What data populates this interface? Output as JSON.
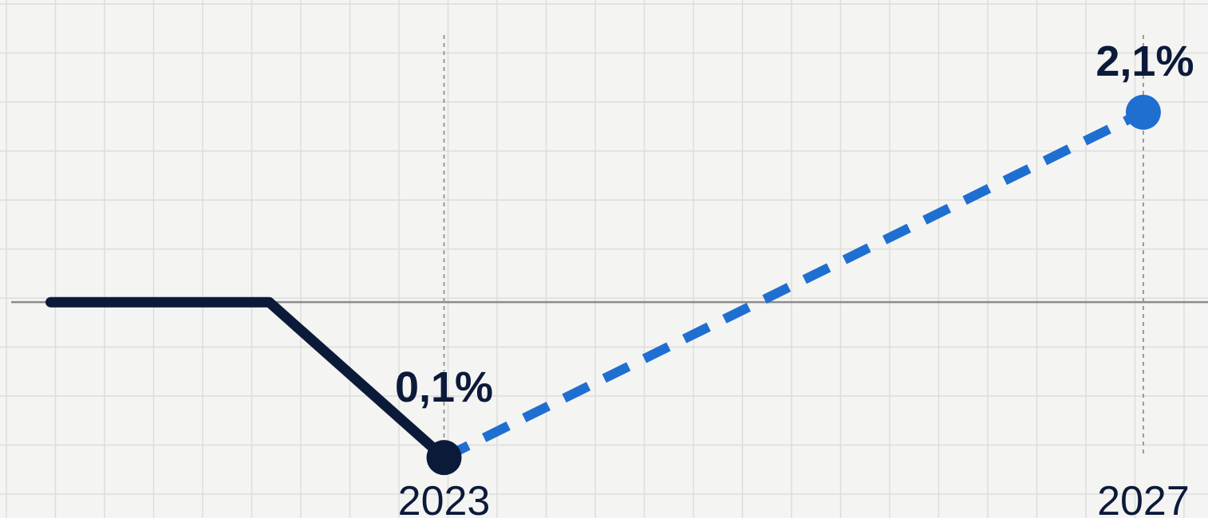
{
  "chart_data": {
    "type": "line",
    "title": "",
    "xlabel": "",
    "ylabel": "",
    "x_tick_labels": [
      {
        "x": 2023,
        "label": "2023"
      },
      {
        "x": 2027,
        "label": "2027"
      }
    ],
    "series": [
      {
        "style": "solid",
        "color": "#0c1a3a",
        "points": [
          {
            "x": 2020.75,
            "y": 1.0
          },
          {
            "x": 2022.0,
            "y": 1.0
          },
          {
            "x": 2023,
            "y": 0.1
          }
        ]
      },
      {
        "style": "dashed",
        "color": "#1f6fd1",
        "points": [
          {
            "x": 2023,
            "y": 0.1
          },
          {
            "x": 2027,
            "y": 2.1
          }
        ]
      }
    ],
    "data_labels": [
      {
        "x": 2023,
        "y": 0.1,
        "text": "0,1%",
        "color": "#0c1a3a"
      },
      {
        "x": 2027,
        "y": 2.1,
        "text": "2,1%",
        "color": "#1f6fd1"
      }
    ],
    "reference_line": {
      "y": 1.0,
      "color": "#8c8c8c"
    },
    "grid": true,
    "xlim": [
      2020.46,
      2027.37
    ],
    "ylim": [
      -0.25,
      2.75
    ]
  }
}
